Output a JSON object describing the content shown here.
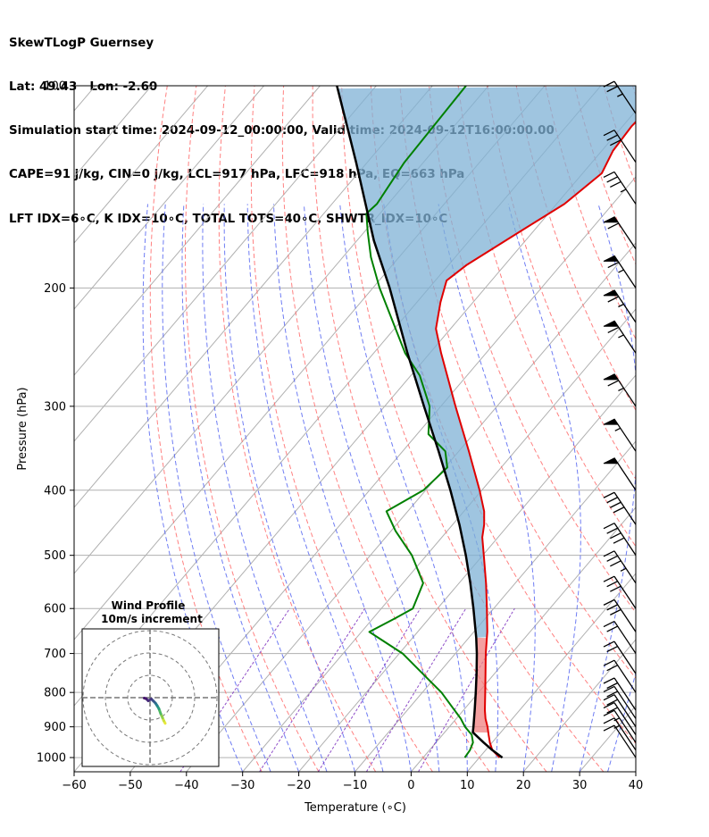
{
  "header": {
    "title": "SkewTLogP Guernsey",
    "location": "Lat: 49.43   Lon: -2.60",
    "times": "Simulation start time: 2024-09-12_00:00:00, Valid time: 2024-09-12T16:00:00.00",
    "params": "CAPE=91 j/kg, CIN=0 j/kg, LCL=917 hPa, LFC=918 hPa, EQ=663 hPa",
    "indices": "LFT IDX=6∘C, K IDX=10∘C, TOTAL TOTS=40∘C, SHWTR_IDX=10∘C"
  },
  "chart_data": {
    "type": "line",
    "subtype": "skew-t log-p",
    "xlabel": "Temperature (∘C)",
    "ylabel": "Pressure (hPa)",
    "xlim": [
      -60,
      40
    ],
    "ylim": [
      1050,
      100
    ],
    "x_ticks": [
      "−60",
      "−50",
      "−40",
      "−30",
      "−20",
      "−10",
      "0",
      "10",
      "20",
      "30",
      "40"
    ],
    "y_ticks": [
      "100",
      "200",
      "300",
      "400",
      "500",
      "600",
      "700",
      "800",
      "900",
      "1000"
    ],
    "colors": {
      "temperature": "#e00000",
      "dewpoint": "#008000",
      "parcel": "#000000",
      "cape_fill": "#7fb2d6",
      "cin_fill": "#f08080",
      "dry_adiabats": "#ff6b6b",
      "moist_adiabats": "#4b5cf0",
      "mixing_ratio": "#7b2fbe",
      "isotherms": "#b0b0b0"
    },
    "series": [
      {
        "kind": "temperature",
        "pressure": [
          1000,
          975,
          950,
          925,
          900,
          875,
          850,
          800,
          750,
          700,
          650,
          600,
          550,
          500,
          470,
          450,
          430,
          400,
          350,
          300,
          250,
          230,
          210,
          195,
          185,
          165,
          150,
          135,
          125,
          115,
          100
        ],
        "temp": [
          13.6,
          11.2,
          9.6,
          8.2,
          6.8,
          5.2,
          3.8,
          1.2,
          -1.6,
          -4.6,
          -7.6,
          -11.2,
          -15.2,
          -19.8,
          -22.8,
          -24.4,
          -26.4,
          -30.4,
          -38.2,
          -47.4,
          -58.0,
          -62.6,
          -65.8,
          -68.0,
          -66.8,
          -62.4,
          -58.6,
          -56.6,
          -58.0,
          -58.4,
          -57.6
        ]
      },
      {
        "kind": "dewpoint",
        "pressure": [
          1000,
          975,
          950,
          925,
          900,
          875,
          850,
          800,
          750,
          700,
          650,
          620,
          600,
          550,
          500,
          460,
          430,
          400,
          370,
          350,
          330,
          300,
          270,
          250,
          200,
          180,
          165,
          155,
          150,
          130,
          100
        ],
        "temp": [
          7.4,
          7.2,
          6.6,
          5.2,
          2.8,
          0.8,
          -1.6,
          -6.6,
          -12.8,
          -19.4,
          -28.6,
          -26.0,
          -24.4,
          -26.4,
          -32.6,
          -39.2,
          -43.8,
          -40.4,
          -39.6,
          -42.4,
          -48.0,
          -52.0,
          -58.4,
          -64.4,
          -78.8,
          -85.0,
          -89.4,
          -92.4,
          -92.0,
          -93.4,
          -94.0
        ]
      },
      {
        "kind": "parcel",
        "pressure": [
          1000,
          975,
          950,
          917,
          900,
          850,
          800,
          750,
          700,
          663,
          600,
          550,
          500,
          450,
          400,
          350,
          300,
          250,
          200,
          170,
          150,
          130,
          115,
          100
        ],
        "temp": [
          14.1,
          11.2,
          8.5,
          5.0,
          4.3,
          2.0,
          -0.5,
          -3.2,
          -6.2,
          -8.7,
          -13.6,
          -18.0,
          -23.0,
          -28.8,
          -35.6,
          -43.6,
          -53.0,
          -64.0,
          -77.0,
          -87.0,
          -94.0,
          -102.0,
          -109.0,
          -117.0
        ]
      }
    ],
    "wind_barbs": {
      "pressure": [
        1000,
        975,
        950,
        925,
        900,
        875,
        850,
        800,
        750,
        700,
        650,
        600,
        550,
        500,
        450,
        400,
        350,
        300,
        250,
        225,
        200,
        175,
        150,
        130,
        110
      ],
      "speed_kt": [
        10,
        15,
        15,
        20,
        20,
        20,
        20,
        20,
        20,
        20,
        30,
        30,
        35,
        40,
        40,
        50,
        55,
        65,
        65,
        65,
        65,
        60,
        35,
        30,
        25
      ]
    },
    "hodograph": {
      "title": "Wind Profile",
      "subtitle": "10m/s increment",
      "u": [
        6.8,
        6.2,
        5.6,
        4.8,
        4.0,
        3.2,
        2.4,
        1.6,
        0.6,
        -0.8,
        -1.8,
        -2.6
      ],
      "v": [
        -11.5,
        -10.4,
        -9.0,
        -7.2,
        -5.0,
        -3.6,
        -2.4,
        -1.6,
        -0.6,
        -1.4,
        -0.4,
        -0.2
      ]
    }
  }
}
